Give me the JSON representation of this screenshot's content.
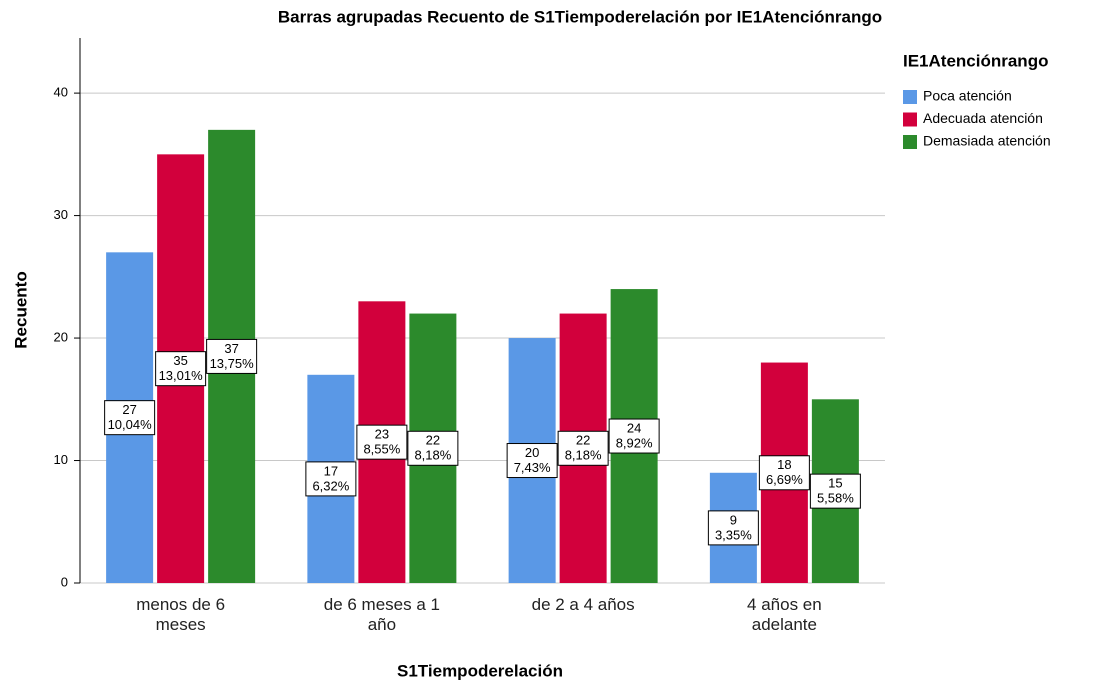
{
  "chart_data": {
    "type": "bar",
    "title": "Barras agrupadas Recuento de S1Tiempoderelación por IE1Atenciónrango",
    "x_label": "S1Tiempoderelación",
    "y_label": "Recuento",
    "legend_title": "IE1Atenciónrango",
    "legend": "right",
    "categories": [
      "menos de 6 meses",
      "de 6 meses a 1 año",
      "de 2 a 4 años",
      "4 años en adelante"
    ],
    "series": [
      {
        "name": "Poca atención",
        "color": "#5a98e6",
        "values": [
          27,
          17,
          20,
          9
        ],
        "percent_labels": [
          "10,04%",
          "6,32%",
          "7,43%",
          "3,35%"
        ]
      },
      {
        "name": "Adecuada atención",
        "color": "#d2003c",
        "values": [
          35,
          23,
          22,
          18
        ],
        "percent_labels": [
          "13,01%",
          "8,55%",
          "8,18%",
          "6,69%"
        ]
      },
      {
        "name": "Demasiada atención",
        "color": "#2c8a2c",
        "values": [
          37,
          22,
          24,
          15
        ],
        "percent_labels": [
          "13,75%",
          "8,18%",
          "8,92%",
          "5,58%"
        ]
      }
    ],
    "ylim": [
      0,
      44.5
    ],
    "yticks": [
      0,
      10,
      20,
      30,
      40
    ],
    "grid": true
  }
}
